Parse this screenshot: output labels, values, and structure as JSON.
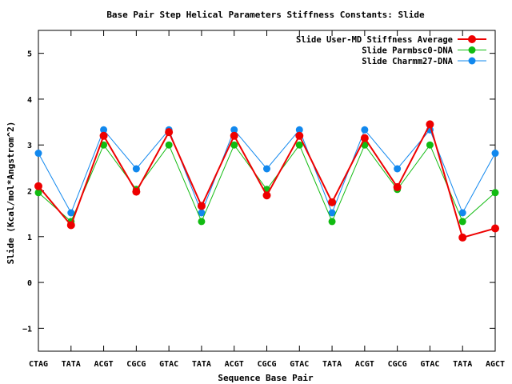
{
  "chart_data": {
    "type": "line",
    "title": "Base Pair Step Helical Parameters Stiffness Constants: Slide",
    "xlabel": "Sequence Base Pair",
    "ylabel": "Slide (Kcal/mol*Angstrom^2)",
    "ylim": [
      -1.5,
      5.5
    ],
    "yticks": [
      -1,
      0,
      1,
      2,
      3,
      4,
      5
    ],
    "categories": [
      "CTAG",
      "TATA",
      "ACGT",
      "CGCG",
      "GTAC",
      "TATA",
      "ACGT",
      "CGCG",
      "GTAC",
      "TATA",
      "ACGT",
      "CGCG",
      "GTAC",
      "TATA",
      "AGCT"
    ],
    "legend_position": "top-right",
    "grid": false,
    "series": [
      {
        "name": "Slide User-MD Stiffness Average",
        "color": "#ee0000",
        "values": [
          2.1,
          1.25,
          3.2,
          1.98,
          3.28,
          1.67,
          3.2,
          1.9,
          3.2,
          1.75,
          3.15,
          2.08,
          3.45,
          0.98,
          1.18
        ]
      },
      {
        "name": "Slide Parmbsc0-DNA",
        "color": "#11bb11",
        "values": [
          1.96,
          1.33,
          3.0,
          2.03,
          3.0,
          1.33,
          3.0,
          2.03,
          3.0,
          1.33,
          3.0,
          2.03,
          3.0,
          1.33,
          1.96
        ]
      },
      {
        "name": "Slide Charmm27-DNA",
        "color": "#1188ee",
        "values": [
          2.82,
          1.52,
          3.33,
          2.48,
          3.33,
          1.52,
          3.33,
          2.48,
          3.33,
          1.52,
          3.33,
          2.48,
          3.33,
          1.52,
          2.82
        ]
      }
    ]
  }
}
